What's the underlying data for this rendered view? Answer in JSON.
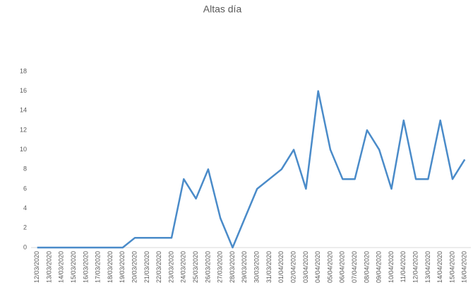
{
  "chart_data": {
    "type": "line",
    "title": "Altas día",
    "categories": [
      "12/03/2020",
      "13/03/2020",
      "14/03/2020",
      "15/03/2020",
      "16/03/2020",
      "17/03/2020",
      "18/03/2020",
      "19/03/2020",
      "20/03/2020",
      "21/03/2020",
      "22/03/2020",
      "23/03/2020",
      "24/03/2020",
      "25/03/2020",
      "26/03/2020",
      "27/03/2020",
      "28/03/2020",
      "29/03/2020",
      "30/03/2020",
      "31/03/2020",
      "01/04/2020",
      "02/04/2020",
      "03/04/2020",
      "04/04/2020",
      "05/04/2020",
      "06/04/2020",
      "07/04/2020",
      "08/04/2020",
      "09/04/2020",
      "10/04/2020",
      "11/04/2020",
      "12/04/2020",
      "13/04/2020",
      "14/04/2020",
      "15/04/2020",
      "16/04/2020"
    ],
    "values": [
      0,
      0,
      0,
      0,
      0,
      0,
      0,
      0,
      1,
      1,
      1,
      1,
      7,
      5,
      8,
      3,
      0,
      3,
      6,
      7,
      8,
      10,
      6,
      16,
      10,
      7,
      7,
      12,
      10,
      6,
      13,
      7,
      7,
      13,
      7,
      9
    ],
    "color": "#4a8bc9",
    "ylim": [
      0,
      18
    ],
    "yticks": [
      0,
      2,
      4,
      6,
      8,
      10,
      12,
      14,
      16,
      18
    ],
    "grid": false
  }
}
